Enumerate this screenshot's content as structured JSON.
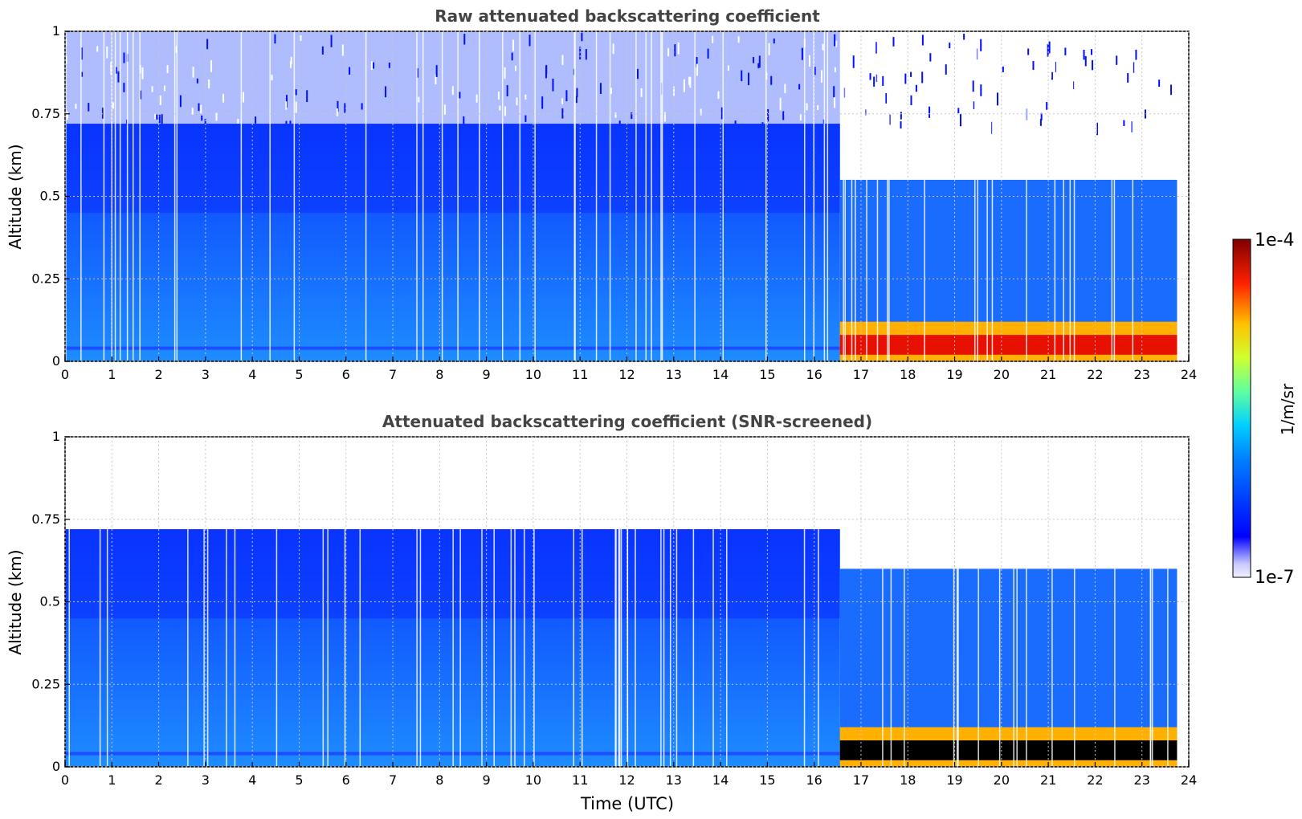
{
  "figure": {
    "colorbar": {
      "label": "1/m/sr",
      "max_label": "1e-4",
      "min_label": "1e-7",
      "colormap": "jet",
      "scale": "log",
      "range": [
        1e-07,
        0.0001
      ]
    },
    "xlabel": "Time (UTC)"
  },
  "chart_data": [
    {
      "type": "heatmap",
      "title": "Raw attenuated backscattering coefficient",
      "ylabel": "Altitude (km)",
      "xlabel": "",
      "xlim": [
        0,
        24
      ],
      "ylim": [
        0,
        1
      ],
      "x_ticks": [
        "0",
        "1",
        "2",
        "3",
        "4",
        "5",
        "6",
        "7",
        "8",
        "9",
        "10",
        "11",
        "12",
        "13",
        "14",
        "15",
        "16",
        "17",
        "18",
        "19",
        "20",
        "21",
        "22",
        "23",
        "24"
      ],
      "y_ticks": [
        "0",
        "0.25",
        "0.5",
        "0.75",
        "1"
      ],
      "grid": true,
      "data_end_time": 23.75,
      "regime_change_time": 16.55,
      "segments": [
        {
          "start": 0,
          "end": 16.55,
          "signal_top_km": 0.72,
          "noise_top_km": 1.0,
          "near_surface_layer_km": 0.04,
          "dominant_level": "2e-7 to 1e-6"
        },
        {
          "start": 16.55,
          "end": 23.75,
          "signal_top_km": 0.55,
          "noise_top_km": 1.0,
          "aerosol_layer_top_km": 0.12,
          "dominant_level": "2e-5 to 8e-5 near surface"
        }
      ]
    },
    {
      "type": "heatmap",
      "title": "Attenuated backscattering coefficient (SNR-screened)",
      "ylabel": "Altitude (km)",
      "xlabel": "Time (UTC)",
      "xlim": [
        0,
        24
      ],
      "ylim": [
        0,
        1
      ],
      "x_ticks": [
        "0",
        "1",
        "2",
        "3",
        "4",
        "5",
        "6",
        "7",
        "8",
        "9",
        "10",
        "11",
        "12",
        "13",
        "14",
        "15",
        "16",
        "17",
        "18",
        "19",
        "20",
        "21",
        "22",
        "23",
        "24"
      ],
      "y_ticks": [
        "0",
        "0.25",
        "0.5",
        "0.75",
        "1"
      ],
      "grid": true,
      "data_end_time": 23.75,
      "regime_change_time": 16.55,
      "segments": [
        {
          "start": 0,
          "end": 16.55,
          "signal_top_km": 0.72,
          "near_surface_layer_km": 0.04,
          "dominant_level": "2e-7 to 1e-6"
        },
        {
          "start": 16.55,
          "end": 23.75,
          "signal_top_km": 0.6,
          "aerosol_layer_top_km": 0.12,
          "saturated_core": "black"
        }
      ]
    }
  ]
}
